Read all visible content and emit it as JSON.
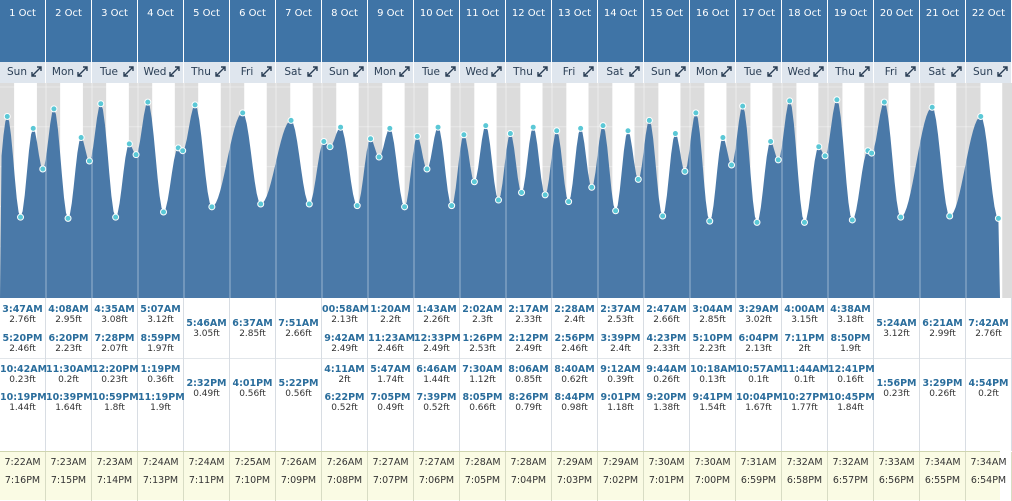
{
  "colors": {
    "header": "#3f74a6",
    "weekday_bg": "#dfe6ee",
    "night": "#dcdcdc",
    "tide_area": "#4a79a8",
    "marker": "#5bc8d6",
    "time_text": "#2a6d9c",
    "sun_bg": "#fafbe4"
  },
  "icons": {
    "day_expand": "expand-arrows-icon"
  },
  "days": [
    {
      "date": "1 Oct",
      "weekday": "Sun",
      "tides": [
        {
          "t": "3:47AM",
          "h": "2.76ft"
        },
        {
          "t": "5:20PM",
          "h": "2.46ft"
        },
        {
          "t": "10:42AM",
          "h": "0.23ft"
        },
        {
          "t": "10:19PM",
          "h": "1.44ft"
        }
      ],
      "sunrise": "7:22AM",
      "sunset": "7:16PM"
    },
    {
      "date": "2 Oct",
      "weekday": "Mon",
      "tides": [
        {
          "t": "4:08AM",
          "h": "2.95ft"
        },
        {
          "t": "6:20PM",
          "h": "2.23ft"
        },
        {
          "t": "11:30AM",
          "h": "0.2ft"
        },
        {
          "t": "10:39PM",
          "h": "1.64ft"
        }
      ],
      "sunrise": "7:23AM",
      "sunset": "7:15PM"
    },
    {
      "date": "3 Oct",
      "weekday": "Tue",
      "tides": [
        {
          "t": "4:35AM",
          "h": "3.08ft"
        },
        {
          "t": "7:28PM",
          "h": "2.07ft"
        },
        {
          "t": "12:20PM",
          "h": "0.23ft"
        },
        {
          "t": "10:59PM",
          "h": "1.8ft"
        }
      ],
      "sunrise": "7:23AM",
      "sunset": "7:14PM"
    },
    {
      "date": "4 Oct",
      "weekday": "Wed",
      "tides": [
        {
          "t": "5:07AM",
          "h": "3.12ft"
        },
        {
          "t": "8:59PM",
          "h": "1.97ft"
        },
        {
          "t": "1:19PM",
          "h": "0.36ft"
        },
        {
          "t": "11:19PM",
          "h": "1.9ft"
        }
      ],
      "sunrise": "7:24AM",
      "sunset": "7:13PM"
    },
    {
      "date": "5 Oct",
      "weekday": "Thu",
      "tides": [
        {
          "t": "5:46AM",
          "h": "3.05ft"
        },
        {
          "t": "2:32PM",
          "h": "0.49ft"
        }
      ],
      "sunrise": "7:24AM",
      "sunset": "7:11PM"
    },
    {
      "date": "6 Oct",
      "weekday": "Fri",
      "tides": [
        {
          "t": "6:37AM",
          "h": "2.85ft"
        },
        {
          "t": "4:01PM",
          "h": "0.56ft"
        }
      ],
      "sunrise": "7:25AM",
      "sunset": "7:10PM"
    },
    {
      "date": "7 Oct",
      "weekday": "Sat",
      "tides": [
        {
          "t": "7:51AM",
          "h": "2.66ft"
        },
        {
          "t": "5:22PM",
          "h": "0.56ft"
        }
      ],
      "sunrise": "7:26AM",
      "sunset": "7:09PM"
    },
    {
      "date": "8 Oct",
      "weekday": "Sun",
      "tides": [
        {
          "t": "00:58AM",
          "h": "2.13ft"
        },
        {
          "t": "9:42AM",
          "h": "2.49ft"
        },
        {
          "t": "4:11AM",
          "h": "2ft"
        },
        {
          "t": "6:22PM",
          "h": "0.52ft"
        }
      ],
      "sunrise": "7:26AM",
      "sunset": "7:08PM"
    },
    {
      "date": "9 Oct",
      "weekday": "Mon",
      "tides": [
        {
          "t": "1:20AM",
          "h": "2.2ft"
        },
        {
          "t": "11:23AM",
          "h": "2.46ft"
        },
        {
          "t": "5:47AM",
          "h": "1.74ft"
        },
        {
          "t": "7:05PM",
          "h": "0.49ft"
        }
      ],
      "sunrise": "7:27AM",
      "sunset": "7:07PM"
    },
    {
      "date": "10 Oct",
      "weekday": "Tue",
      "tides": [
        {
          "t": "1:43AM",
          "h": "2.26ft"
        },
        {
          "t": "12:33PM",
          "h": "2.49ft"
        },
        {
          "t": "6:46AM",
          "h": "1.44ft"
        },
        {
          "t": "7:39PM",
          "h": "0.52ft"
        }
      ],
      "sunrise": "7:27AM",
      "sunset": "7:06PM"
    },
    {
      "date": "11 Oct",
      "weekday": "Wed",
      "tides": [
        {
          "t": "2:02AM",
          "h": "2.3ft"
        },
        {
          "t": "1:26PM",
          "h": "2.53ft"
        },
        {
          "t": "7:30AM",
          "h": "1.12ft"
        },
        {
          "t": "8:05PM",
          "h": "0.66ft"
        }
      ],
      "sunrise": "7:28AM",
      "sunset": "7:05PM"
    },
    {
      "date": "12 Oct",
      "weekday": "Thu",
      "tides": [
        {
          "t": "2:17AM",
          "h": "2.33ft"
        },
        {
          "t": "2:12PM",
          "h": "2.49ft"
        },
        {
          "t": "8:06AM",
          "h": "0.85ft"
        },
        {
          "t": "8:26PM",
          "h": "0.79ft"
        }
      ],
      "sunrise": "7:28AM",
      "sunset": "7:04PM"
    },
    {
      "date": "13 Oct",
      "weekday": "Fri",
      "tides": [
        {
          "t": "2:28AM",
          "h": "2.4ft"
        },
        {
          "t": "2:56PM",
          "h": "2.46ft"
        },
        {
          "t": "8:40AM",
          "h": "0.62ft"
        },
        {
          "t": "8:44PM",
          "h": "0.98ft"
        }
      ],
      "sunrise": "7:29AM",
      "sunset": "7:03PM"
    },
    {
      "date": "14 Oct",
      "weekday": "Sat",
      "tides": [
        {
          "t": "2:37AM",
          "h": "2.53ft"
        },
        {
          "t": "3:39PM",
          "h": "2.4ft"
        },
        {
          "t": "9:12AM",
          "h": "0.39ft"
        },
        {
          "t": "9:01PM",
          "h": "1.18ft"
        }
      ],
      "sunrise": "7:29AM",
      "sunset": "7:02PM"
    },
    {
      "date": "15 Oct",
      "weekday": "Sun",
      "tides": [
        {
          "t": "2:47AM",
          "h": "2.66ft"
        },
        {
          "t": "4:23PM",
          "h": "2.33ft"
        },
        {
          "t": "9:44AM",
          "h": "0.26ft"
        },
        {
          "t": "9:20PM",
          "h": "1.38ft"
        }
      ],
      "sunrise": "7:30AM",
      "sunset": "7:01PM"
    },
    {
      "date": "16 Oct",
      "weekday": "Mon",
      "tides": [
        {
          "t": "3:04AM",
          "h": "2.85ft"
        },
        {
          "t": "5:10PM",
          "h": "2.23ft"
        },
        {
          "t": "10:18AM",
          "h": "0.13ft"
        },
        {
          "t": "9:41PM",
          "h": "1.54ft"
        }
      ],
      "sunrise": "7:30AM",
      "sunset": "7:00PM"
    },
    {
      "date": "17 Oct",
      "weekday": "Tue",
      "tides": [
        {
          "t": "3:29AM",
          "h": "3.02ft"
        },
        {
          "t": "6:04PM",
          "h": "2.13ft"
        },
        {
          "t": "10:57AM",
          "h": "0.1ft"
        },
        {
          "t": "10:04PM",
          "h": "1.67ft"
        }
      ],
      "sunrise": "7:31AM",
      "sunset": "6:59PM"
    },
    {
      "date": "18 Oct",
      "weekday": "Wed",
      "tides": [
        {
          "t": "4:00AM",
          "h": "3.15ft"
        },
        {
          "t": "7:11PM",
          "h": "2ft"
        },
        {
          "t": "11:44AM",
          "h": "0.1ft"
        },
        {
          "t": "10:27PM",
          "h": "1.77ft"
        }
      ],
      "sunrise": "7:32AM",
      "sunset": "6:58PM"
    },
    {
      "date": "19 Oct",
      "weekday": "Thu",
      "tides": [
        {
          "t": "4:38AM",
          "h": "3.18ft"
        },
        {
          "t": "8:50PM",
          "h": "1.9ft"
        },
        {
          "t": "12:41PM",
          "h": "0.16ft"
        },
        {
          "t": "10:45PM",
          "h": "1.84ft"
        }
      ],
      "sunrise": "7:32AM",
      "sunset": "6:57PM"
    },
    {
      "date": "20 Oct",
      "weekday": "Fri",
      "tides": [
        {
          "t": "5:24AM",
          "h": "3.12ft"
        },
        {
          "t": "1:56PM",
          "h": "0.23ft"
        }
      ],
      "sunrise": "7:33AM",
      "sunset": "6:56PM"
    },
    {
      "date": "21 Oct",
      "weekday": "Sat",
      "tides": [
        {
          "t": "6:21AM",
          "h": "2.99ft"
        },
        {
          "t": "3:29PM",
          "h": "0.26ft"
        }
      ],
      "sunrise": "7:34AM",
      "sunset": "6:55PM"
    },
    {
      "date": "22 Oct",
      "weekday": "Sun",
      "tides": [
        {
          "t": "7:42AM",
          "h": "2.76ft"
        },
        {
          "t": "4:54PM",
          "h": "0.2ft"
        }
      ],
      "sunrise": "7:34AM",
      "sunset": "6:54PM"
    }
  ],
  "chart_data": {
    "type": "area",
    "x_unit": "date-time",
    "y_unit": "ft",
    "ylim": [
      -1.8,
      3.6
    ],
    "grid": true,
    "points": [
      [
        "1 Oct 3:47AM",
        2.76
      ],
      [
        "1 Oct 10:42AM",
        0.23
      ],
      [
        "1 Oct 5:20PM",
        2.46
      ],
      [
        "1 Oct 10:19PM",
        1.44
      ],
      [
        "2 Oct 4:08AM",
        2.95
      ],
      [
        "2 Oct 11:30AM",
        0.2
      ],
      [
        "2 Oct 6:20PM",
        2.23
      ],
      [
        "2 Oct 10:39PM",
        1.64
      ],
      [
        "3 Oct 4:35AM",
        3.08
      ],
      [
        "3 Oct 12:20PM",
        0.23
      ],
      [
        "3 Oct 7:28PM",
        2.07
      ],
      [
        "3 Oct 10:59PM",
        1.8
      ],
      [
        "4 Oct 5:07AM",
        3.12
      ],
      [
        "4 Oct 1:19PM",
        0.36
      ],
      [
        "4 Oct 8:59PM",
        1.97
      ],
      [
        "4 Oct 11:19PM",
        1.9
      ],
      [
        "5 Oct 5:46AM",
        3.05
      ],
      [
        "5 Oct 2:32PM",
        0.49
      ],
      [
        "6 Oct 6:37AM",
        2.85
      ],
      [
        "6 Oct 4:01PM",
        0.56
      ],
      [
        "7 Oct 7:51AM",
        2.66
      ],
      [
        "7 Oct 5:22PM",
        0.56
      ],
      [
        "8 Oct 00:58AM",
        2.13
      ],
      [
        "8 Oct 4:11AM",
        2
      ],
      [
        "8 Oct 9:42AM",
        2.49
      ],
      [
        "8 Oct 6:22PM",
        0.52
      ],
      [
        "9 Oct 1:20AM",
        2.2
      ],
      [
        "9 Oct 5:47AM",
        1.74
      ],
      [
        "9 Oct 11:23AM",
        2.46
      ],
      [
        "9 Oct 7:05PM",
        0.49
      ],
      [
        "10 Oct 1:43AM",
        2.26
      ],
      [
        "10 Oct 6:46AM",
        1.44
      ],
      [
        "10 Oct 12:33PM",
        2.49
      ],
      [
        "10 Oct 7:39PM",
        0.52
      ],
      [
        "11 Oct 2:02AM",
        2.3
      ],
      [
        "11 Oct 7:30AM",
        1.12
      ],
      [
        "11 Oct 1:26PM",
        2.53
      ],
      [
        "11 Oct 8:05PM",
        0.66
      ],
      [
        "12 Oct 2:17AM",
        2.33
      ],
      [
        "12 Oct 8:06AM",
        0.85
      ],
      [
        "12 Oct 2:12PM",
        2.49
      ],
      [
        "12 Oct 8:26PM",
        0.79
      ],
      [
        "13 Oct 2:28AM",
        2.4
      ],
      [
        "13 Oct 8:40AM",
        0.62
      ],
      [
        "13 Oct 2:56PM",
        2.46
      ],
      [
        "13 Oct 8:44PM",
        0.98
      ],
      [
        "14 Oct 2:37AM",
        2.53
      ],
      [
        "14 Oct 9:12AM",
        0.39
      ],
      [
        "14 Oct 3:39PM",
        2.4
      ],
      [
        "14 Oct 9:01PM",
        1.18
      ],
      [
        "15 Oct 2:47AM",
        2.66
      ],
      [
        "15 Oct 9:44AM",
        0.26
      ],
      [
        "15 Oct 4:23PM",
        2.33
      ],
      [
        "15 Oct 9:20PM",
        1.38
      ],
      [
        "16 Oct 3:04AM",
        2.85
      ],
      [
        "16 Oct 10:18AM",
        0.13
      ],
      [
        "16 Oct 5:10PM",
        2.23
      ],
      [
        "16 Oct 9:41PM",
        1.54
      ],
      [
        "17 Oct 3:29AM",
        3.02
      ],
      [
        "17 Oct 10:57AM",
        0.1
      ],
      [
        "17 Oct 6:04PM",
        2.13
      ],
      [
        "17 Oct 10:04PM",
        1.67
      ],
      [
        "18 Oct 4:00AM",
        3.15
      ],
      [
        "18 Oct 11:44AM",
        0.1
      ],
      [
        "18 Oct 7:11PM",
        2
      ],
      [
        "18 Oct 10:27PM",
        1.77
      ],
      [
        "19 Oct 4:38AM",
        3.18
      ],
      [
        "19 Oct 12:41PM",
        0.16
      ],
      [
        "19 Oct 8:50PM",
        1.9
      ],
      [
        "19 Oct 10:45PM",
        1.84
      ],
      [
        "20 Oct 5:24AM",
        3.12
      ],
      [
        "20 Oct 1:56PM",
        0.23
      ],
      [
        "21 Oct 6:21AM",
        2.99
      ],
      [
        "21 Oct 3:29PM",
        0.26
      ],
      [
        "22 Oct 7:42AM",
        2.76
      ],
      [
        "22 Oct 4:54PM",
        0.2
      ]
    ]
  }
}
